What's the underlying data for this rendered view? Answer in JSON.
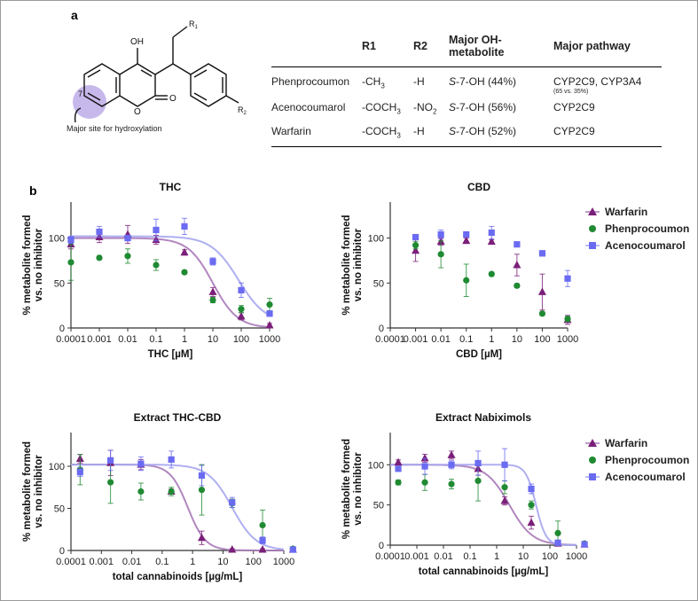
{
  "panel_a": {
    "label": "a",
    "structure": {
      "oh": "OH",
      "o_ring": "O",
      "o_carbonyl": "O",
      "r1_letter": "R",
      "r1_sub": "1",
      "r2_letter": "R",
      "r2_sub": "2",
      "position": "7",
      "caption": "Major site for hydroxylation"
    },
    "table": {
      "headers": [
        "",
        "R1",
        "R2",
        "Major OH-metabolite",
        "Major pathway"
      ],
      "rows": [
        {
          "drug": "Phenprocoumon",
          "r1_a": "-CH",
          "r1_sub": "3",
          "r2": "-H",
          "r2_sub": "",
          "met_italic": "S",
          "met_rest": "-7-OH  (44%)",
          "pathway": "CYP2C9, CYP3A4",
          "note": "(65 vs. 35%)"
        },
        {
          "drug": "Acenocoumarol",
          "r1_a": "-COCH",
          "r1_sub": "3",
          "r2": "-NO",
          "r2_sub": "2",
          "met_italic": "S",
          "met_rest": "-7-OH  (56%)",
          "pathway": "CYP2C9"
        },
        {
          "drug": "Warfarin",
          "r1_a": "-COCH",
          "r1_sub": "3",
          "r2": "-H",
          "r2_sub": "",
          "met_italic": "S",
          "met_rest": "-7-OH  (52%)",
          "pathway": "CYP2C9"
        }
      ]
    }
  },
  "panel_b_label": "b",
  "legend": [
    "Warfarin",
    "Phenprocoumon",
    "Acenocoumarol"
  ],
  "colors": {
    "warfarin": "#7b1f7a",
    "warfarin_curve": "#a97ab8",
    "phenprocoumon": "#1f8a32",
    "acenocoumarol": "#6b6bf2",
    "acenocoumarol_curve": "#a6a6f0"
  },
  "chart_data": [
    {
      "type": "scatter",
      "title": "THC",
      "xlabel": "THC [µM]",
      "ylabel": "% metabolite formed vs. no inhibitor",
      "xscale": "log",
      "xlim": [
        0.0001,
        1000
      ],
      "ylim": [
        0,
        140
      ],
      "xticks": [
        "0.0001",
        "0.001",
        "0.01",
        "0.1",
        "1",
        "10",
        "100",
        "1000"
      ],
      "yticks": [
        0,
        50,
        100
      ],
      "series": [
        {
          "name": "Warfarin",
          "x": [
            0.0001,
            0.001,
            0.01,
            0.1,
            1,
            10,
            100,
            1000
          ],
          "y": [
            93,
            101,
            104,
            98,
            84,
            40,
            13,
            3
          ],
          "err": [
            5,
            6,
            10,
            5,
            3,
            5,
            4,
            2
          ],
          "curve": {
            "top": 100,
            "bottom": 0,
            "ic50": 10,
            "hill": 1
          }
        },
        {
          "name": "Phenprocoumon",
          "x": [
            0.0001,
            0.001,
            0.01,
            0.1,
            1,
            10,
            100,
            1000
          ],
          "y": [
            73,
            78,
            80,
            70,
            62,
            31,
            21,
            26
          ],
          "err": [
            20,
            2,
            8,
            6,
            2,
            3,
            4,
            7
          ]
        },
        {
          "name": "Acenocoumarol",
          "x": [
            0.0001,
            0.001,
            0.01,
            0.1,
            1,
            10,
            100,
            1000
          ],
          "y": [
            98,
            107,
            100,
            109,
            113,
            74,
            42,
            16
          ],
          "err": [
            4,
            6,
            3,
            12,
            9,
            4,
            8,
            3
          ],
          "curve": {
            "top": 102,
            "bottom": 5,
            "ic50": 80,
            "hill": 0.9
          }
        }
      ]
    },
    {
      "type": "scatter",
      "title": "CBD",
      "xlabel": "CBD [µM]",
      "ylabel": "% metabolite formed vs. no inhibitor",
      "xscale": "log",
      "xlim": [
        0.0001,
        1000
      ],
      "ylim": [
        0,
        140
      ],
      "xticks": [
        "0.0001",
        "0.001",
        "0.01",
        "0.1",
        "1",
        "10",
        "100",
        "1000"
      ],
      "yticks": [
        0,
        50,
        100
      ],
      "series": [
        {
          "name": "Warfarin",
          "x": [
            0.001,
            0.01,
            0.1,
            1,
            10,
            100,
            1000
          ],
          "y": [
            86,
            96,
            97,
            96,
            70,
            40,
            9
          ],
          "err": [
            12,
            4,
            3,
            2,
            12,
            20,
            5
          ]
        },
        {
          "name": "Phenprocoumon",
          "x": [
            0.001,
            0.01,
            0.1,
            1,
            10,
            100,
            1000
          ],
          "y": [
            92,
            82,
            53,
            60,
            47,
            16,
            10
          ],
          "err": [
            4,
            15,
            18,
            2,
            2,
            2,
            3
          ]
        },
        {
          "name": "Acenocoumarol",
          "x": [
            0.001,
            0.01,
            0.1,
            1,
            10,
            100,
            1000
          ],
          "y": [
            101,
            104,
            104,
            106,
            93,
            83,
            55
          ],
          "err": [
            2,
            5,
            3,
            7,
            2,
            3,
            9
          ]
        }
      ]
    },
    {
      "type": "scatter",
      "title": "Extract THC-CBD",
      "xlabel": "total cannabinoids [µg/mL]",
      "ylabel": "% metabolite formed vs. no inhibitor",
      "xscale": "log",
      "xlim": [
        0.0001,
        1000
      ],
      "ylim": [
        0,
        140
      ],
      "xticks": [
        "0.0001",
        "0.001",
        "0.01",
        "0.1",
        "1",
        "10",
        "100",
        "1000"
      ],
      "yticks": [
        0,
        50,
        100
      ],
      "series": [
        {
          "name": "Warfarin",
          "x": [
            0.0002,
            0.002,
            0.02,
            0.2,
            2,
            20,
            200,
            2000
          ],
          "y": [
            109,
            104,
            102,
            70,
            15,
            1,
            1,
            1
          ],
          "err": [
            5,
            15,
            6,
            3,
            8,
            1,
            1,
            1
          ],
          "curve": {
            "top": 102,
            "bottom": 0,
            "ic50": 0.7,
            "hill": 1.5
          }
        },
        {
          "name": "Phenprocoumon",
          "x": [
            0.0002,
            0.002,
            0.02,
            0.2,
            2,
            20,
            200,
            2000
          ],
          "y": [
            96,
            81,
            70,
            70,
            72,
            56,
            30,
            2
          ],
          "err": [
            18,
            25,
            10,
            5,
            30,
            5,
            18,
            2
          ]
        },
        {
          "name": "Acenocoumarol",
          "x": [
            0.0002,
            0.002,
            0.02,
            0.2,
            2,
            20,
            200,
            2000
          ],
          "y": [
            93,
            107,
            103,
            108,
            89,
            57,
            12,
            1
          ],
          "err": [
            5,
            12,
            8,
            10,
            12,
            6,
            4,
            1
          ],
          "curve": {
            "top": 102,
            "bottom": 0,
            "ic50": 20,
            "hill": 1.1
          }
        }
      ]
    },
    {
      "type": "scatter",
      "title": "Extract Nabiximols",
      "xlabel": "total cannabinoids [µg/mL]",
      "ylabel": "% metabolite formed vs. no inhibitor",
      "xscale": "log",
      "xlim": [
        0.0001,
        1000
      ],
      "ylim": [
        0,
        140
      ],
      "xticks": [
        "0.0001",
        "0.001",
        "0.01",
        "0.1",
        "1",
        "10",
        "100",
        "1000"
      ],
      "yticks": [
        0,
        50,
        100
      ],
      "series": [
        {
          "name": "Warfarin",
          "x": [
            0.0002,
            0.002,
            0.02,
            0.2,
            2,
            20,
            200,
            2000
          ],
          "y": [
            103,
            108,
            112,
            95,
            55,
            28,
            2,
            1
          ],
          "err": [
            3,
            5,
            5,
            8,
            5,
            8,
            2,
            1
          ],
          "curve": {
            "top": 100,
            "bottom": 0,
            "ic50": 3,
            "hill": 1
          }
        },
        {
          "name": "Phenprocoumon",
          "x": [
            0.0002,
            0.002,
            0.02,
            0.2,
            2,
            20,
            200,
            2000
          ],
          "y": [
            78,
            78,
            76,
            80,
            72,
            50,
            15,
            2
          ],
          "err": [
            3,
            10,
            6,
            25,
            8,
            5,
            15,
            1
          ]
        },
        {
          "name": "Acenocoumarol",
          "x": [
            0.0002,
            0.002,
            0.02,
            0.2,
            2,
            20,
            200,
            2000
          ],
          "y": [
            95,
            98,
            100,
            102,
            100,
            70,
            3,
            1
          ],
          "err": [
            3,
            10,
            5,
            15,
            20,
            6,
            2,
            1
          ],
          "curve": {
            "top": 100,
            "bottom": 0,
            "ic50": 30,
            "hill": 2.3
          }
        }
      ]
    }
  ]
}
